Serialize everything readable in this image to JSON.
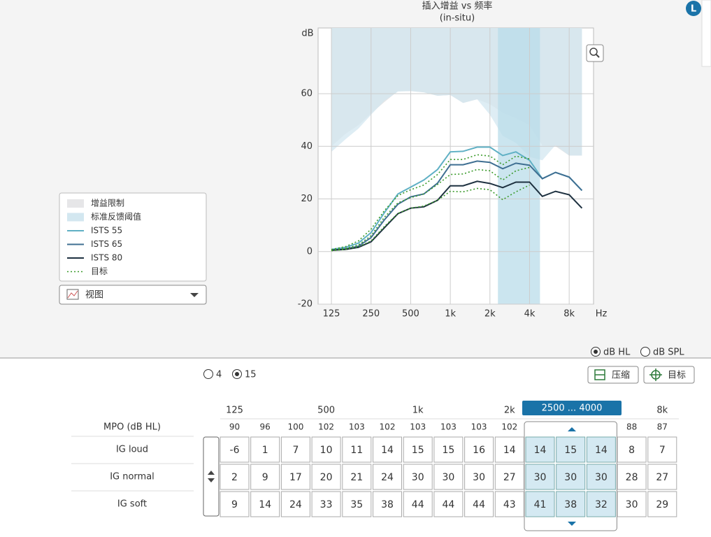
{
  "chart_data": {
    "type": "line",
    "title": "插入增益 vs 频率",
    "subtitle": "(in-situ)",
    "y_label": "dB",
    "x_label": "Hz",
    "xscale": "log",
    "xlim": [
      99,
      12250
    ],
    "ylim": [
      -20,
      85
    ],
    "xticks": [
      125,
      250,
      500,
      {
        "value": 1000,
        "label": "1k"
      },
      {
        "value": 2000,
        "label": "2k"
      },
      {
        "value": 4000,
        "label": "4k"
      },
      {
        "value": 8000,
        "label": "8k"
      }
    ],
    "yticks": [
      -20,
      0,
      20,
      40,
      60
    ],
    "grid": true,
    "highlight_band": [
      2300,
      4800
    ],
    "highlight_color": "#b9dcea",
    "x": [
      125,
      160,
      200,
      250,
      315,
      400,
      500,
      630,
      800,
      1000,
      1250,
      1600,
      2000,
      2500,
      3150,
      4000,
      5000,
      6300,
      8000,
      10000
    ],
    "areas": [
      {
        "name": "增益限制",
        "color": "#e6e6e8",
        "values": [
          40,
          44.8,
          48,
          52.5,
          56.8,
          61,
          61,
          60.5,
          59.2,
          59.5,
          56.5,
          57.9,
          56,
          52.8,
          50.7,
          48,
          40.3,
          40,
          36.5,
          36.5
        ]
      },
      {
        "name": "标准反馈阈值",
        "color": "#d3e7f0",
        "values": [
          37.9,
          42.7,
          46.7,
          52,
          57.3,
          60.8,
          61,
          60.5,
          59.2,
          59.5,
          56.5,
          57.9,
          52,
          44,
          41.3,
          36,
          34.7,
          40.5,
          36.5,
          36.5
        ]
      }
    ],
    "series": [
      {
        "name": "ISTS 55",
        "color": "#5fb0c4",
        "values": [
          0.8,
          1.6,
          3.2,
          7.2,
          14.7,
          21.9,
          24.5,
          27.2,
          31.2,
          37.9,
          38.1,
          39.7,
          39.7,
          36.5,
          37.9,
          34.7,
          27.7,
          30.1,
          28.3,
          23.2
        ]
      },
      {
        "name": "ISTS 65",
        "color": "#3f6f92",
        "values": [
          0.5,
          1,
          2,
          5.3,
          12,
          18,
          20.8,
          21.9,
          26,
          33,
          33,
          34.4,
          33.9,
          31.5,
          33.6,
          32.8,
          27.7,
          30.1,
          28.3,
          23.2
        ]
      },
      {
        "name": "ISTS 80",
        "color": "#1e3140",
        "values": [
          0.5,
          0.8,
          1.6,
          3.7,
          9,
          14.4,
          16.5,
          17,
          19.5,
          25,
          25,
          26.7,
          25.9,
          24.3,
          26.4,
          26.4,
          21,
          22.9,
          21.6,
          16.5
        ]
      }
    ],
    "target": {
      "name": "目标",
      "color": "#3a9a2a",
      "series": [
        [
          0.8,
          1.9,
          4,
          8.5,
          15.5,
          21.3,
          23.5,
          25.3,
          29.3,
          35,
          35,
          36.8,
          36.3,
          33,
          36.3,
          35.2,
          null,
          null,
          null,
          null
        ],
        [
          0.5,
          1.2,
          2.5,
          6,
          13,
          18.5,
          20.5,
          21.9,
          25.5,
          29.3,
          29.5,
          31.2,
          30.7,
          27.2,
          30.7,
          32,
          null,
          null,
          null,
          null
        ],
        [
          0.3,
          0.8,
          1.8,
          4,
          9.5,
          14.5,
          16.5,
          17.3,
          19.5,
          22.9,
          22.7,
          24,
          23.5,
          19.7,
          22.7,
          25.3,
          null,
          null,
          null,
          null
        ]
      ]
    },
    "view_menu": "视图"
  },
  "side_badge": "L",
  "channels": {
    "options": [
      "4",
      "15"
    ],
    "selected": 1
  },
  "units": {
    "options": [
      "dB HL",
      "dB SPL"
    ],
    "selected": 0
  },
  "buttons": [
    "压缩",
    "目标"
  ],
  "table": {
    "column_labels": [
      "125",
      null,
      null,
      "500",
      null,
      null,
      "1k",
      null,
      null,
      "2k",
      null,
      null,
      null,
      null,
      "8k"
    ],
    "selected_label": "2500 ... 4000",
    "selected_columns": [
      10,
      12
    ],
    "mpo": {
      "label": "MPO (dB HL)",
      "values": [
        90,
        96,
        100,
        102,
        103,
        102,
        103,
        103,
        103,
        102,
        null,
        null,
        null,
        88,
        87
      ]
    },
    "rows": [
      {
        "label": "IG loud",
        "values": [
          -6,
          1,
          7,
          10,
          11,
          14,
          15,
          15,
          16,
          14,
          14,
          15,
          14,
          8,
          7
        ]
      },
      {
        "label": "IG normal",
        "values": [
          2,
          9,
          17,
          20,
          21,
          24,
          30,
          30,
          30,
          27,
          30,
          30,
          30,
          28,
          27
        ]
      },
      {
        "label": "IG soft",
        "values": [
          9,
          14,
          24,
          33,
          35,
          38,
          44,
          44,
          44,
          43,
          41,
          38,
          32,
          30,
          29
        ]
      }
    ]
  }
}
